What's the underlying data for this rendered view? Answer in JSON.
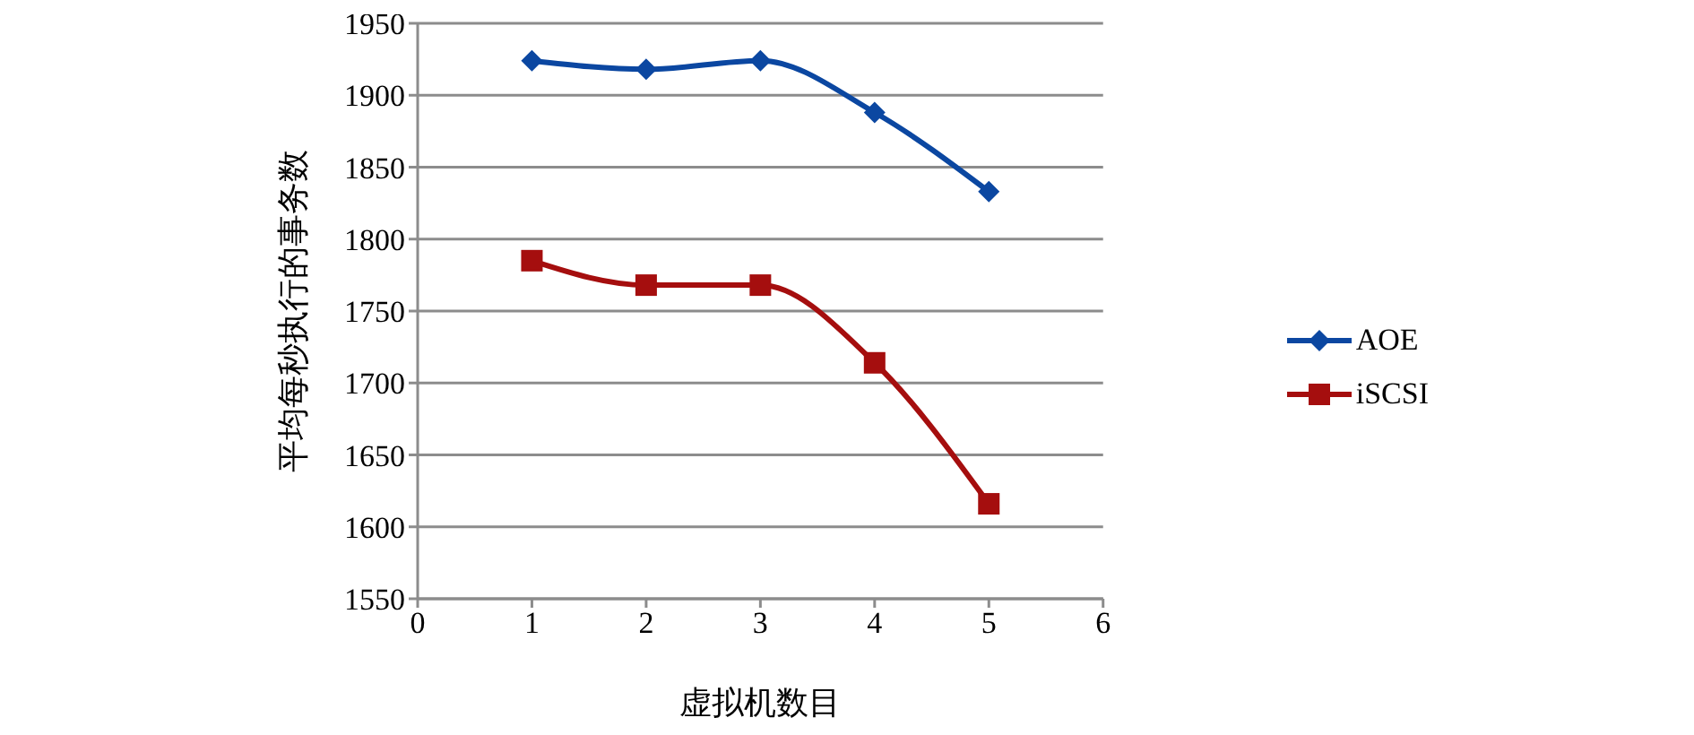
{
  "chart_data": {
    "type": "line",
    "xlabel": "虚拟机数目",
    "ylabel": "平均每秒执行的事务数",
    "x": [
      1,
      2,
      3,
      4,
      5
    ],
    "series": [
      {
        "name": "AOE",
        "color": "#0b47a1",
        "marker": "diamond",
        "values": [
          1924,
          1918,
          1924,
          1888,
          1833
        ]
      },
      {
        "name": "iSCSI",
        "color": "#a50e0e",
        "marker": "square",
        "values": [
          1785,
          1768,
          1768,
          1714,
          1616
        ]
      }
    ],
    "xlim": [
      0,
      6
    ],
    "xticks": [
      0,
      1,
      2,
      3,
      4,
      5,
      6
    ],
    "ylim": [
      1550,
      1950
    ],
    "yticks": [
      1550,
      1600,
      1650,
      1700,
      1750,
      1800,
      1850,
      1900,
      1950
    ],
    "grid": "y",
    "legend": "right",
    "line_style": "solid"
  }
}
